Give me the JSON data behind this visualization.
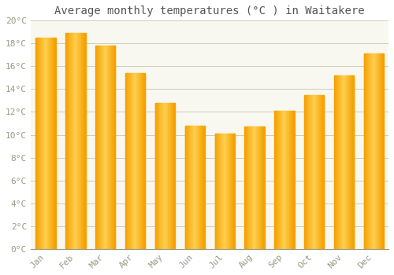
{
  "title": "Average monthly temperatures (°C ) in Waitakere",
  "months": [
    "Jan",
    "Feb",
    "Mar",
    "Apr",
    "May",
    "Jun",
    "Jul",
    "Aug",
    "Sep",
    "Oct",
    "Nov",
    "Dec"
  ],
  "temperatures": [
    18.5,
    18.9,
    17.8,
    15.4,
    12.8,
    10.8,
    10.1,
    10.7,
    12.1,
    13.5,
    15.2,
    17.1
  ],
  "bar_color_center": "#FFD050",
  "bar_color_edge": "#F5A000",
  "ylim": [
    0,
    20
  ],
  "ytick_step": 2,
  "background_color": "#ffffff",
  "plot_bg_color": "#f8f8f0",
  "grid_color": "#ccccbb",
  "title_fontsize": 10,
  "tick_fontsize": 8,
  "font_family": "monospace"
}
